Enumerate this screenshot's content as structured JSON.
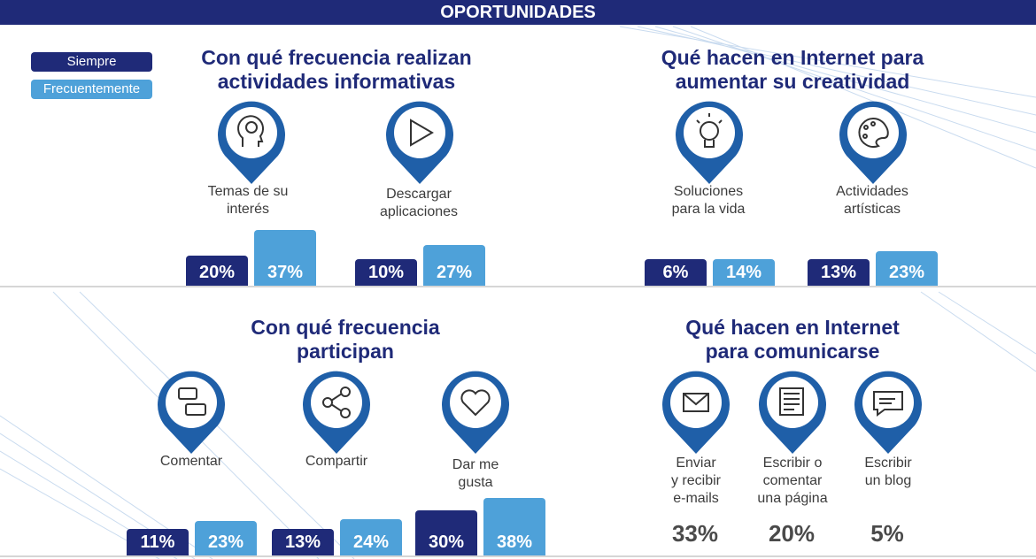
{
  "header": {
    "title": "OPORTUNIDADES"
  },
  "legend": [
    {
      "label": "Siempre",
      "color": "#1f2a78"
    },
    {
      "label": "Frecuentemente",
      "color": "#4ea1d9"
    }
  ],
  "sections": {
    "informativas": {
      "title_line1": "Con qué frecuencia realizan",
      "title_line2": "actividades informativas"
    },
    "creatividad": {
      "title_line1": "Qué hacen en Internet para",
      "title_line2": "aumentar su creatividad"
    },
    "participan": {
      "title_line1": "Con qué frecuencia",
      "title_line2": "participan"
    },
    "comunicarse": {
      "title_line1": "Qué hacen en Internet",
      "title_line2": "para comunicarse"
    }
  },
  "chart_data": [
    {
      "type": "bar",
      "title": "Con qué frecuencia realizan actividades informativas",
      "categories": [
        "Temas de su interés",
        "Descargar aplicaciones"
      ],
      "series": [
        {
          "name": "Siempre",
          "values": [
            20,
            10
          ]
        },
        {
          "name": "Frecuentemente",
          "values": [
            37,
            27
          ]
        }
      ],
      "value_labels": [
        [
          "20%",
          "10%"
        ],
        [
          "37%",
          "27%"
        ]
      ]
    },
    {
      "type": "bar",
      "title": "Qué hacen en Internet para aumentar su creatividad",
      "categories": [
        "Soluciones para la vida",
        "Actividades artísticas"
      ],
      "series": [
        {
          "name": "Siempre",
          "values": [
            6,
            13
          ]
        },
        {
          "name": "Frecuentemente",
          "values": [
            14,
            23
          ]
        }
      ],
      "value_labels": [
        [
          "6%",
          "13%"
        ],
        [
          "14%",
          "23%"
        ]
      ]
    },
    {
      "type": "bar",
      "title": "Con qué frecuencia participan",
      "categories": [
        "Comentar",
        "Compartir",
        "Dar me gusta"
      ],
      "series": [
        {
          "name": "Siempre",
          "values": [
            11,
            13,
            30
          ]
        },
        {
          "name": "Frecuentemente",
          "values": [
            23,
            24,
            38
          ]
        }
      ],
      "value_labels": [
        [
          "11%",
          "13%",
          "30%"
        ],
        [
          "23%",
          "24%",
          "38%"
        ]
      ]
    },
    {
      "type": "table",
      "title": "Qué hacen en Internet para comunicarse",
      "categories": [
        "Enviar y recibir e-mails",
        "Escribir o comentar una página",
        "Escribir un blog"
      ],
      "values": [
        33,
        20,
        5
      ],
      "value_labels": [
        "33%",
        "20%",
        "5%"
      ]
    }
  ],
  "items": {
    "temas": {
      "line1": "Temas de su",
      "line2": "interés",
      "icon": "brain-head-icon"
    },
    "descargar": {
      "line1": "Descargar",
      "line2": "aplicaciones",
      "icon": "play-store-icon"
    },
    "soluciones": {
      "line1": "Soluciones",
      "line2": "para la vida",
      "icon": "lightbulb-icon"
    },
    "artisticas": {
      "line1": "Actividades",
      "line2": "artísticas",
      "icon": "palette-icon"
    },
    "comentar": {
      "line1": "Comentar",
      "icon": "chat-bubbles-icon"
    },
    "compartir": {
      "line1": "Compartir",
      "icon": "share-icon"
    },
    "megusta": {
      "line1": "Dar me",
      "line2": "gusta",
      "icon": "heart-icon"
    },
    "emails": {
      "line1": "Enviar",
      "line2": "y recibir",
      "line3": "e-mails",
      "icon": "envelope-icon"
    },
    "comentarpagina": {
      "line1": "Escribir o",
      "line2": "comentar",
      "line3": "una página",
      "icon": "newspaper-icon"
    },
    "blog": {
      "line1": "Escribir",
      "line2": "un blog",
      "icon": "blog-icon"
    }
  },
  "colors": {
    "dark": "#1f2a78",
    "light": "#4ea1d9",
    "pin": "#1f5fa8"
  }
}
